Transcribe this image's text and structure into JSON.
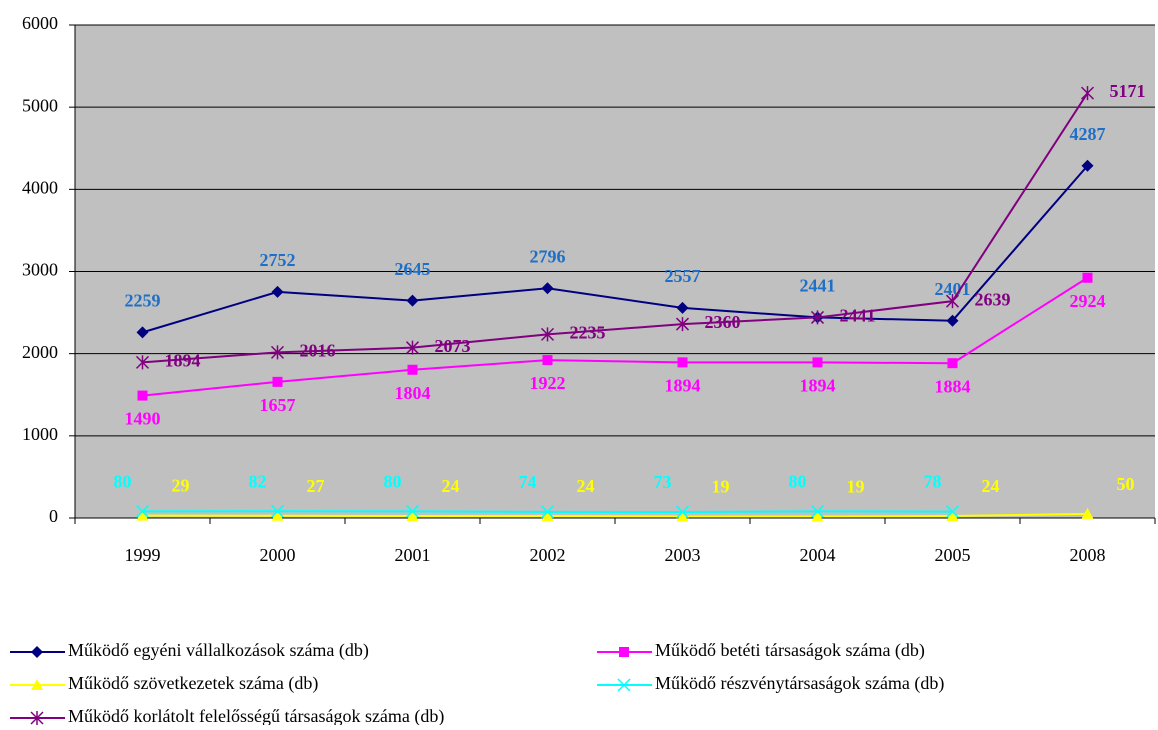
{
  "chart_data": {
    "type": "line",
    "categories": [
      "1999",
      "2000",
      "2001",
      "2002",
      "2003",
      "2004",
      "2005",
      "2008"
    ],
    "ylim": [
      0,
      6000
    ],
    "yticks": [
      0,
      1000,
      2000,
      3000,
      4000,
      5000,
      6000
    ],
    "grid": true,
    "series": [
      {
        "name": "Működő egyéni vállalkozások száma (db)",
        "color": "#000080",
        "label_color": "#1F6FC6",
        "marker": "diamond",
        "values": [
          2259,
          2752,
          2645,
          2796,
          2557,
          2441,
          2401,
          4287
        ]
      },
      {
        "name": "Működő betéti társaságok száma (db)",
        "color": "#FF00FF",
        "label_color": "#FF00FF",
        "marker": "square",
        "values": [
          1490,
          1657,
          1804,
          1922,
          1894,
          1894,
          1884,
          2924
        ]
      },
      {
        "name": "Működő szövetkezetek száma (db)",
        "color": "#FFFF00",
        "label_color": "#FFFF00",
        "marker": "triangle",
        "values": [
          29,
          27,
          24,
          24,
          19,
          19,
          24,
          50
        ]
      },
      {
        "name": "Működő részvénytársaságok száma (db)",
        "color": "#00FFFF",
        "label_color": "#00FFFF",
        "marker": "x",
        "values": [
          80,
          82,
          80,
          74,
          73,
          80,
          78,
          null
        ]
      },
      {
        "name": "Működő korlátolt felelősségű társaságok száma (db)",
        "color": "#800080",
        "label_color": "#800080",
        "marker": "star",
        "values": [
          1894,
          2016,
          2073,
          2235,
          2360,
          2441,
          2639,
          5171
        ]
      }
    ]
  }
}
